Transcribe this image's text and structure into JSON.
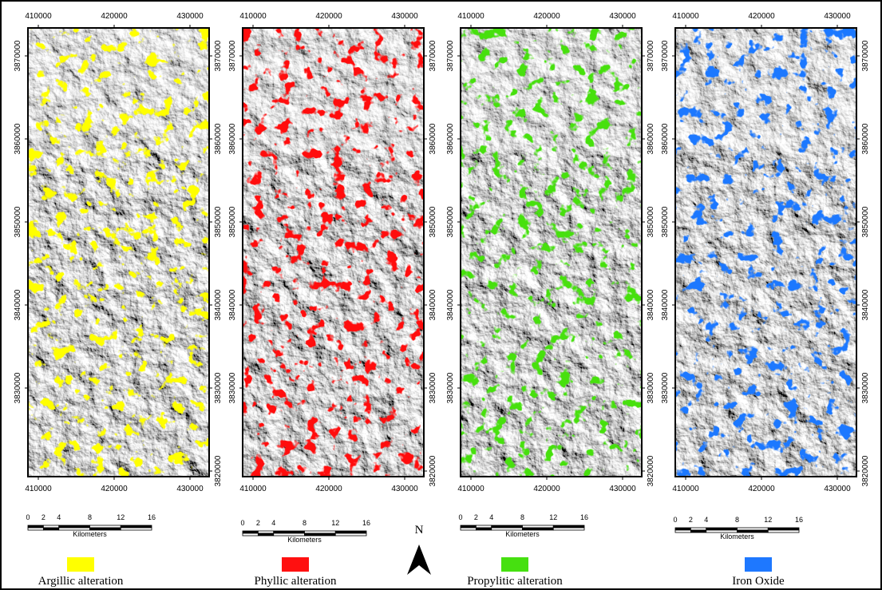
{
  "map_grid": {
    "x_ticks": [
      410000,
      420000,
      430000
    ],
    "y_ticks": [
      3870000,
      3860000,
      3850000,
      3840000,
      3830000,
      3820000
    ]
  },
  "scale_bar": {
    "ticks": [
      0,
      2,
      4,
      8,
      12,
      16
    ],
    "unit": "Kilometers"
  },
  "north_arrow": "N",
  "panels": [
    {
      "legend": "Argillic alteration",
      "color": "#ffff00"
    },
    {
      "legend": "Phyllic alteration",
      "color": "#ff1010"
    },
    {
      "legend": "Propylitic alteration",
      "color": "#46e010"
    },
    {
      "legend": "Iron Oxide",
      "color": "#1e78ff"
    }
  ]
}
